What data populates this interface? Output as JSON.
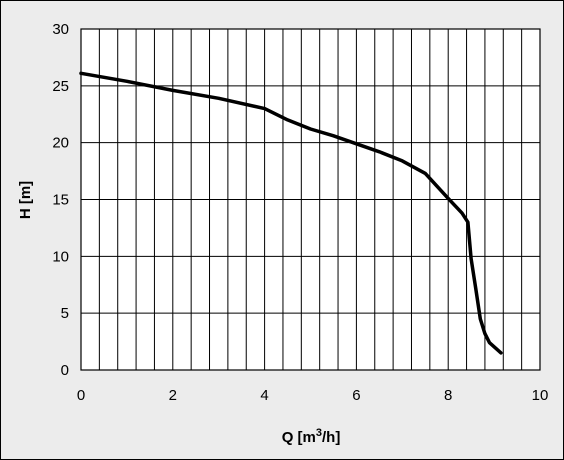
{
  "chart_data": {
    "type": "line",
    "title": "",
    "xlabel_main": "Q [m",
    "xlabel_sup": "3",
    "xlabel_tail": "/h]",
    "ylabel": "H [m]",
    "xlim": [
      0,
      10
    ],
    "ylim": [
      0,
      30
    ],
    "x_ticks": [
      0,
      2,
      4,
      6,
      8,
      10
    ],
    "y_ticks": [
      0,
      5,
      10,
      15,
      20,
      25,
      30
    ],
    "x_minor_step": 0.4,
    "y_major_step": 5,
    "grid": true,
    "legend": "none",
    "series": [
      {
        "x": [
          0,
          1,
          2,
          3,
          4,
          4.5,
          5,
          5.5,
          6,
          6.5,
          7,
          7.5,
          8,
          8.3,
          8.43,
          8.5,
          8.6,
          8.7,
          8.8,
          8.9,
          9.15
        ],
        "y": [
          26.1,
          25.4,
          24.6,
          23.9,
          23.0,
          22.0,
          21.2,
          20.6,
          19.9,
          19.2,
          18.4,
          17.3,
          15.1,
          13.8,
          13.0,
          9.8,
          7.2,
          4.5,
          3.2,
          2.4,
          1.5
        ]
      }
    ]
  }
}
